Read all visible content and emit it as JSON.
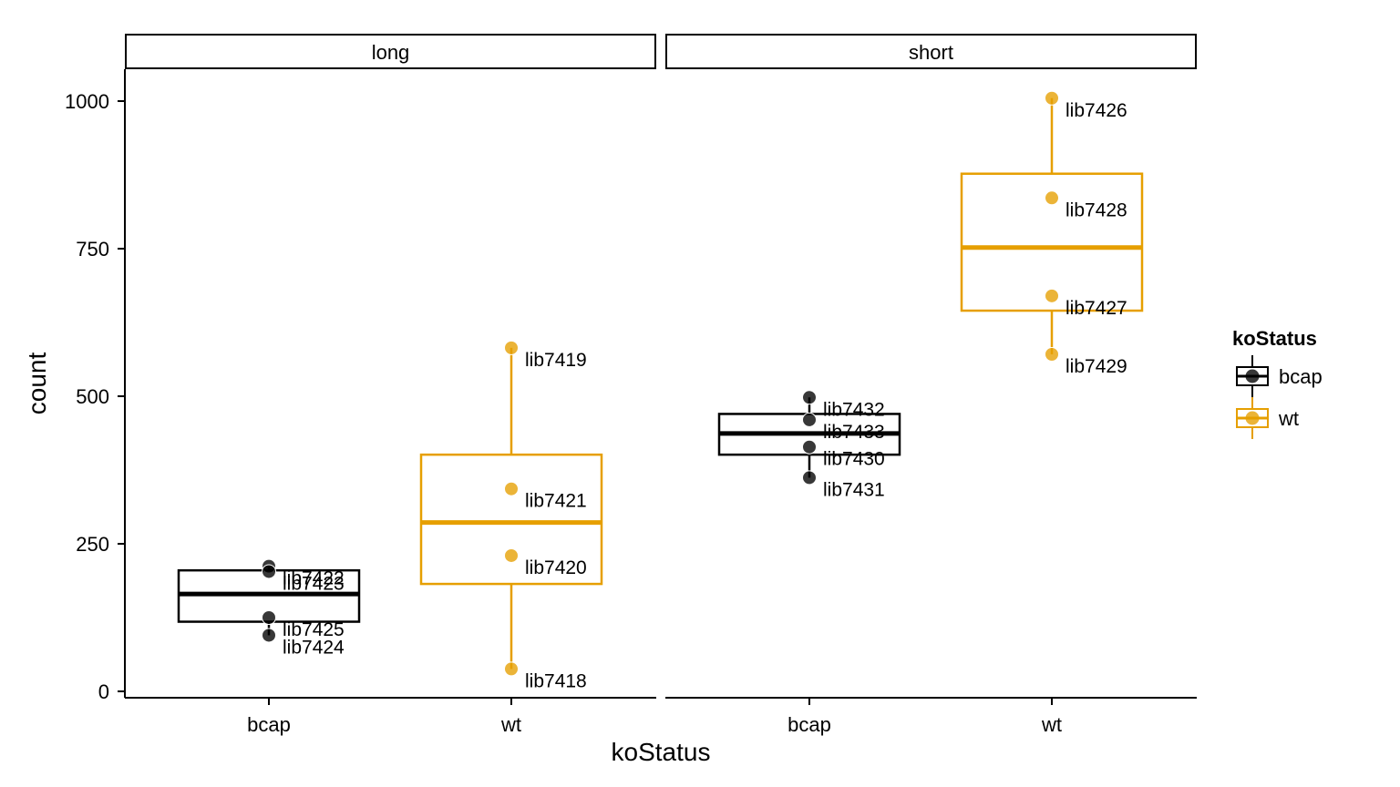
{
  "chart_data": {
    "type": "box",
    "xlabel": "koStatus",
    "ylabel": "count",
    "ylim": [
      0,
      1000
    ],
    "yticks": [
      0,
      250,
      500,
      750,
      1000
    ],
    "categories": [
      "bcap",
      "wt"
    ],
    "colors": {
      "bcap": "#000000",
      "wt": "#E69F00"
    },
    "legend": {
      "title": "koStatus",
      "entries": [
        "bcap",
        "wt"
      ],
      "placement": "right"
    },
    "facets": [
      {
        "name": "long",
        "groups": [
          {
            "category": "bcap",
            "box": {
              "q1": 118,
              "median": 165,
              "q3": 205,
              "whisker_low": 95,
              "whisker_high": 212
            },
            "points": [
              {
                "label": "lib7422",
                "value": 212
              },
              {
                "label": "lib7423",
                "value": 203
              },
              {
                "label": "lib7425",
                "value": 125
              },
              {
                "label": "lib7424",
                "value": 95
              }
            ]
          },
          {
            "category": "wt",
            "box": {
              "q1": 182,
              "median": 286,
              "q3": 401,
              "whisker_low": 38,
              "whisker_high": 582
            },
            "points": [
              {
                "label": "lib7419",
                "value": 582
              },
              {
                "label": "lib7421",
                "value": 343
              },
              {
                "label": "lib7420",
                "value": 230
              },
              {
                "label": "lib7418",
                "value": 38
              }
            ]
          }
        ]
      },
      {
        "name": "short",
        "groups": [
          {
            "category": "bcap",
            "box": {
              "q1": 401,
              "median": 437,
              "q3": 470,
              "whisker_low": 362,
              "whisker_high": 498
            },
            "points": [
              {
                "label": "lib7432",
                "value": 498
              },
              {
                "label": "lib7433",
                "value": 460
              },
              {
                "label": "lib7430",
                "value": 414
              },
              {
                "label": "lib7431",
                "value": 362
              }
            ]
          },
          {
            "category": "wt",
            "box": {
              "q1": 645,
              "median": 752,
              "q3": 877,
              "whisker_low": 571,
              "whisker_high": 1005
            },
            "points": [
              {
                "label": "lib7426",
                "value": 1005
              },
              {
                "label": "lib7428",
                "value": 836
              },
              {
                "label": "lib7427",
                "value": 670
              },
              {
                "label": "lib7429",
                "value": 571
              }
            ]
          }
        ]
      }
    ]
  }
}
